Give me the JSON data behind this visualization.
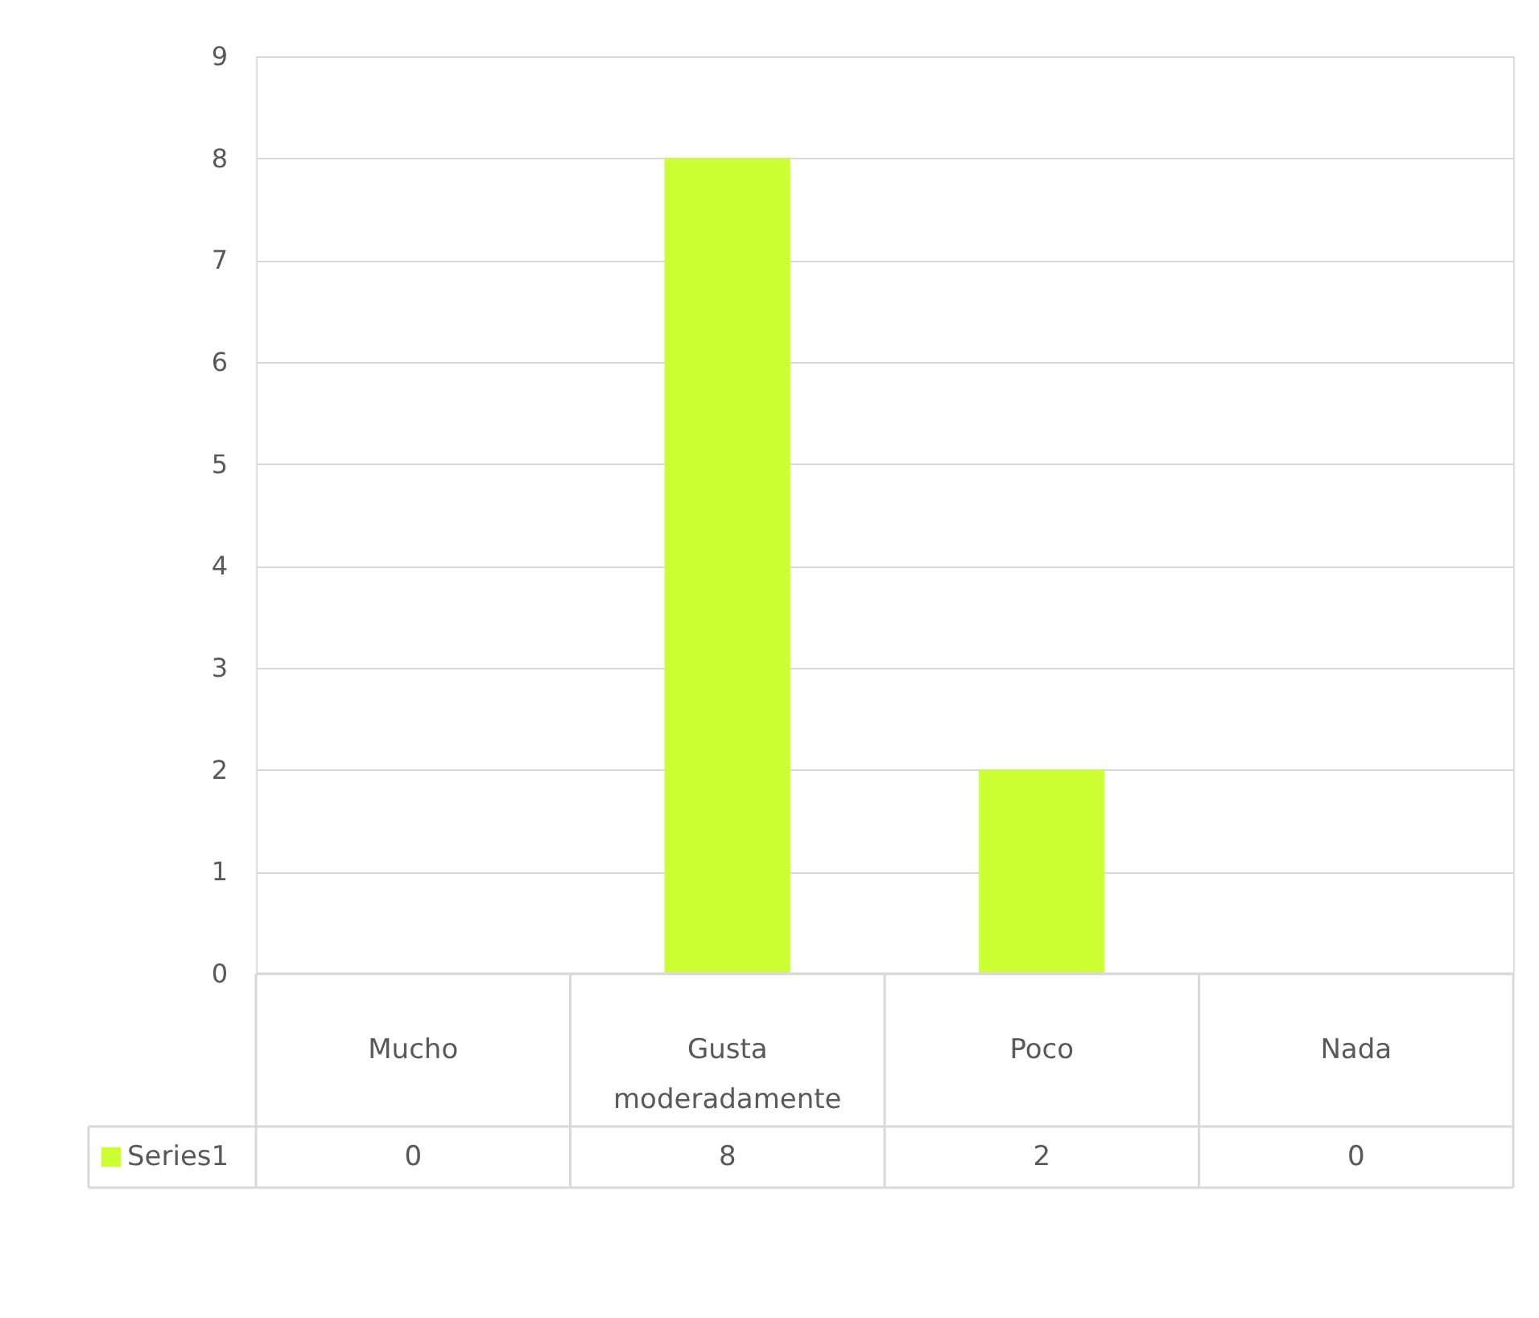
{
  "chart_data": {
    "type": "bar",
    "categories": [
      "Mucho",
      "Gusta moderadamente",
      "Poco",
      "Nada"
    ],
    "series": [
      {
        "name": "Series1",
        "color": "#ccff33",
        "values": [
          0,
          8,
          2,
          0
        ]
      }
    ],
    "ylim": [
      0,
      9
    ],
    "yticks": [
      0,
      1,
      2,
      3,
      4,
      5,
      6,
      7,
      8,
      9
    ],
    "grid": "y",
    "data_labels": true,
    "legend": "bottom"
  }
}
